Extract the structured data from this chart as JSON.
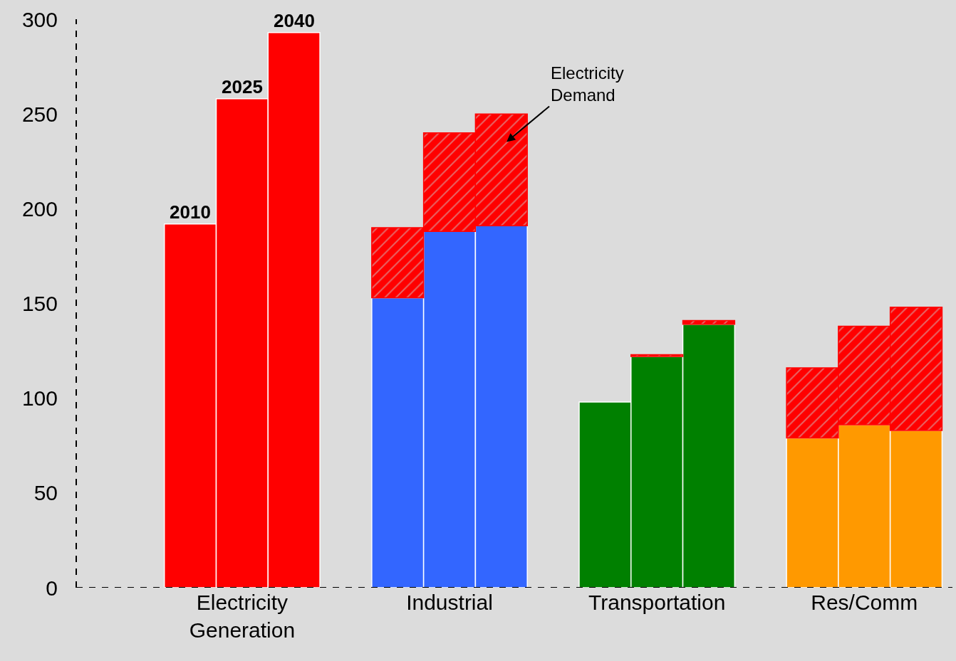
{
  "chart_data": {
    "type": "bar",
    "stacked": true,
    "categories": [
      null,
      "Electricity\nGeneration",
      null,
      null,
      null,
      "Industrial",
      null,
      null,
      null,
      "Transportation",
      null,
      null,
      null,
      "Res/Comm",
      null
    ],
    "series": [
      {
        "colors": [
          "#ff0000",
          "#ff0000",
          "#ff0000",
          null,
          "#3366ff",
          "#3366ff",
          "#3366ff",
          null,
          "#008000",
          "#008000",
          "#008000",
          null,
          "#ff9900",
          "#ff9900",
          "#ff9900"
        ],
        "values": [
          192,
          258,
          293,
          null,
          153,
          188,
          191,
          null,
          98,
          122,
          139,
          null,
          79,
          86,
          83
        ]
      },
      {
        "name": "Electricity\nDemand",
        "color": "#ff0000",
        "values": [
          null,
          null,
          null,
          null,
          37,
          52,
          59,
          null,
          null,
          1,
          2,
          null,
          37,
          52,
          65
        ]
      }
    ],
    "annotations": [
      "2010",
      "2025",
      "2040"
    ],
    "ylim": [
      0,
      300
    ],
    "yticks": [
      0,
      50,
      100,
      150,
      200,
      250,
      300
    ],
    "grid": false,
    "legend": false
  }
}
